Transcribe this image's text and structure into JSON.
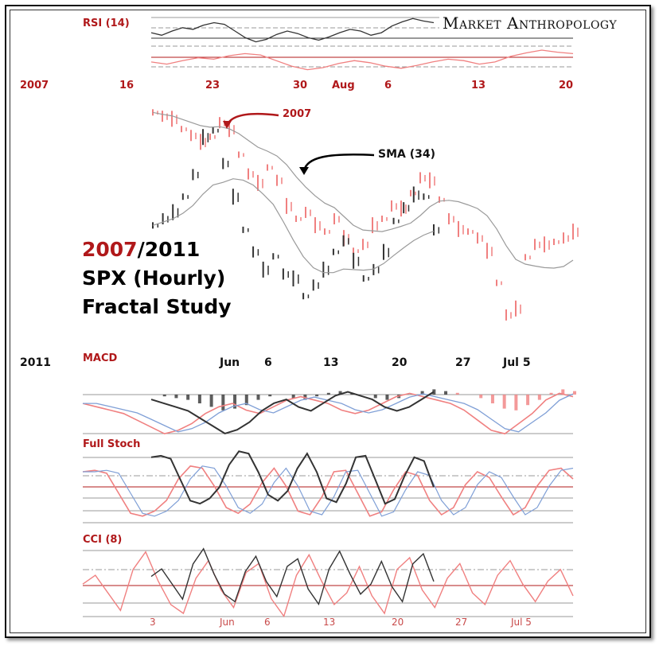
{
  "brand": "Market Anthropology",
  "study": {
    "y1": "2007",
    "y2": "/2011",
    "line2": "SPX (Hourly)",
    "line3": "Fractal Study"
  },
  "colors": {
    "red": "#b0181a",
    "pink": "#f08080",
    "blue": "#7f9fd6",
    "dark": "#333333",
    "gray": "#9a9a9a"
  },
  "chart_data": [
    {
      "type": "line",
      "title": "RSI (14)",
      "series": [
        {
          "values": [
            58,
            55,
            60,
            64,
            62,
            67,
            70,
            68,
            60,
            52,
            47,
            50,
            56,
            60,
            57,
            52,
            49,
            53,
            58,
            62,
            60,
            55,
            58,
            66,
            71,
            75,
            72,
            70
          ]
        }
      ]
    },
    {
      "type": "line",
      "title": "",
      "year_label": "2007",
      "x_ticks": [
        "16",
        "23",
        "30",
        "Aug",
        "6",
        "13",
        "20"
      ],
      "annotations": [
        "2007",
        "SMA (34)"
      ],
      "series": [
        {
          "name": "2007",
          "values": [
            1553,
            1550,
            1548,
            1540,
            1535,
            1530,
            1534,
            1545,
            1540,
            1520,
            1505,
            1498,
            1510,
            1500,
            1480,
            1470,
            1475,
            1465,
            1460,
            1470,
            1455,
            1445,
            1450,
            1465,
            1470,
            1480,
            1478,
            1490,
            1502,
            1500,
            1485,
            1470,
            1462,
            1460,
            1455,
            1445,
            1420,
            1395,
            1400,
            1440,
            1450,
            1450,
            1452,
            1455,
            1460
          ]
        },
        {
          "name": "2011",
          "values": [
            1282,
            1285,
            1288,
            1295,
            1305,
            1322,
            1325,
            1310,
            1295,
            1280,
            1270,
            1262,
            1268,
            1260,
            1258,
            1250,
            1255,
            1262,
            1270,
            1275,
            1266,
            1258,
            1262,
            1270,
            1284,
            1290,
            1296,
            1295,
            1280
          ]
        }
      ]
    },
    {
      "type": "line",
      "title": "MACD",
      "year_label": "2011",
      "x_ticks": [
        "Jun",
        "6",
        "13",
        "20",
        "27",
        "Jul  5"
      ],
      "series": [
        {
          "values": [
            0,
            -1,
            -2,
            -3,
            -5,
            -7,
            -9,
            -8,
            -6,
            -3,
            -1,
            0,
            -2,
            -3,
            -1,
            1,
            2,
            1,
            0,
            -2,
            -3,
            -2,
            0,
            2,
            3,
            2,
            1,
            0,
            -2,
            -5,
            -8,
            -9,
            -6,
            -3,
            1,
            3,
            2
          ]
        }
      ]
    },
    {
      "type": "line",
      "title": "Full Stoch",
      "series": [
        {
          "values": [
            80,
            82,
            78,
            50,
            22,
            18,
            25,
            40,
            70,
            88,
            85,
            60,
            30,
            22,
            35,
            65,
            85,
            60,
            25,
            20,
            45,
            80,
            82,
            50,
            18,
            24,
            55,
            80,
            75,
            40,
            20,
            30,
            62,
            80,
            72,
            45,
            20,
            30,
            60,
            82,
            85,
            70
          ]
        }
      ]
    },
    {
      "type": "line",
      "title": "CCI (8)",
      "x_ticks": [
        "3",
        "Jun",
        "6",
        "13",
        "20",
        "27",
        "Jul 5"
      ],
      "series": [
        {
          "values": [
            10,
            40,
            -20,
            -80,
            60,
            120,
            20,
            -60,
            -90,
            30,
            90,
            -10,
            -70,
            50,
            80,
            -40,
            -100,
            40,
            110,
            20,
            -60,
            -20,
            70,
            -30,
            -90,
            60,
            100,
            -10,
            -70,
            30,
            80,
            -20,
            -60,
            40,
            90,
            10,
            -50,
            20,
            60,
            -30
          ]
        }
      ]
    }
  ]
}
